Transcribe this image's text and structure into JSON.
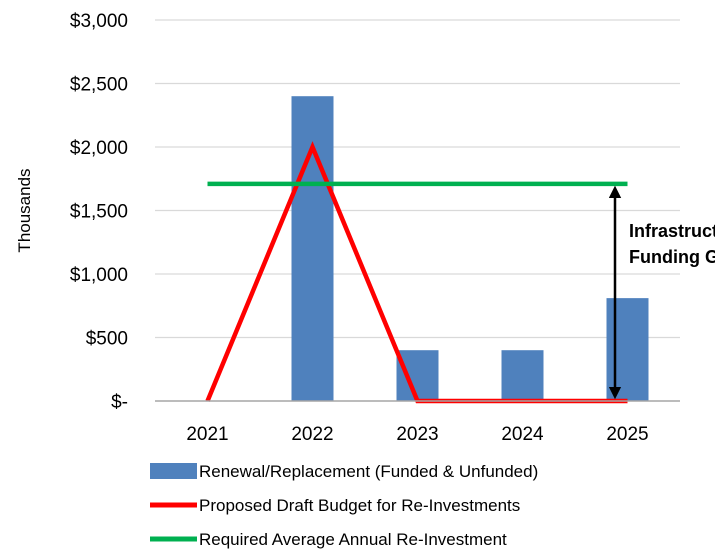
{
  "chart_data": {
    "type": "bar",
    "categories": [
      "2021",
      "2022",
      "2023",
      "2024",
      "2025"
    ],
    "ylabel": "Thousands",
    "ylim": [
      0,
      3000
    ],
    "y_ticks": [
      {
        "value": 0,
        "label": "$-"
      },
      {
        "value": 500,
        "label": "$500"
      },
      {
        "value": 1000,
        "label": "$1,000"
      },
      {
        "value": 1500,
        "label": "$1,500"
      },
      {
        "value": 2000,
        "label": "$2,000"
      },
      {
        "value": 2500,
        "label": "$2,500"
      },
      {
        "value": 3000,
        "label": "$3,000"
      }
    ],
    "grid": true,
    "legend_position": "bottom",
    "series": [
      {
        "name": "Renewal/Replacement (Funded & Unfunded)",
        "type": "bar",
        "color": "#4f81bd",
        "values": [
          0,
          2400,
          400,
          400,
          810
        ]
      },
      {
        "name": "Proposed Draft Budget for Re-Investments",
        "type": "line",
        "color": "#ff0000",
        "values": [
          0,
          2000,
          0,
          0,
          0
        ]
      },
      {
        "name": "Required Average Annual Re-Investment",
        "type": "line",
        "color": "#00b050",
        "values": [
          1710,
          1710,
          1710,
          1710,
          1710
        ]
      }
    ],
    "annotation": {
      "lines": [
        "Infrastructure",
        "Funding Gap"
      ],
      "from": 1710,
      "to": 0,
      "x_between": [
        "2024",
        "2025"
      ]
    }
  }
}
